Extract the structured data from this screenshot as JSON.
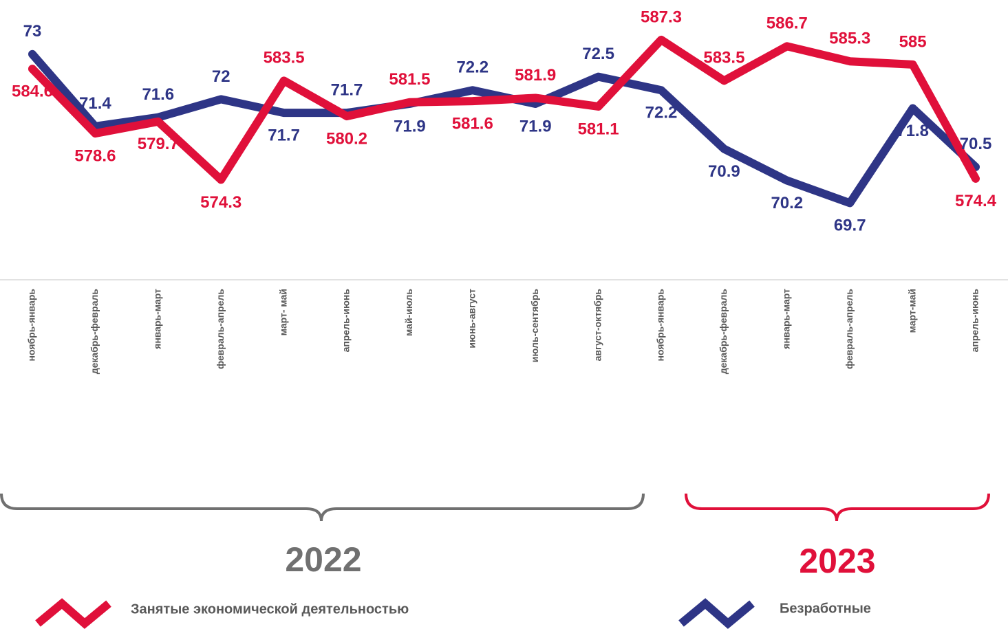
{
  "chart_data": {
    "type": "line",
    "categories": [
      "ноябрь-январь",
      "декабрь-февраль",
      "январь-март",
      "февраль-апрель",
      "март- май",
      "апрель-июнь",
      "май-июль",
      "июнь-август",
      "июль-сентябрь",
      "август-октябрь",
      "ноябрь-январь",
      "декабрь-февраль",
      "январь-март",
      "февраль-апрель",
      "март-май",
      "апрель-июнь"
    ],
    "series": [
      {
        "name": "Безработные",
        "color": "#2e3586",
        "axis": "y2",
        "values": [
          73,
          71.4,
          71.6,
          72,
          71.7,
          71.7,
          71.9,
          72.2,
          71.9,
          72.5,
          72.2,
          70.9,
          70.2,
          69.7,
          71.8,
          70.5
        ]
      },
      {
        "name": "Занятые экономической деятельностью",
        "color": "#e0103a",
        "values": [
          584.6,
          578.6,
          579.7,
          574.3,
          583.5,
          580.2,
          581.5,
          581.6,
          581.9,
          581.1,
          587.3,
          583.5,
          586.7,
          585.3,
          585,
          574.4
        ]
      }
    ],
    "ylim": [
      565,
      591
    ],
    "y2lim": [
      68,
      74.2
    ],
    "groups": [
      {
        "label": "2022",
        "color": "#707070"
      },
      {
        "label": "2023",
        "color": "#e0103a"
      }
    ]
  }
}
